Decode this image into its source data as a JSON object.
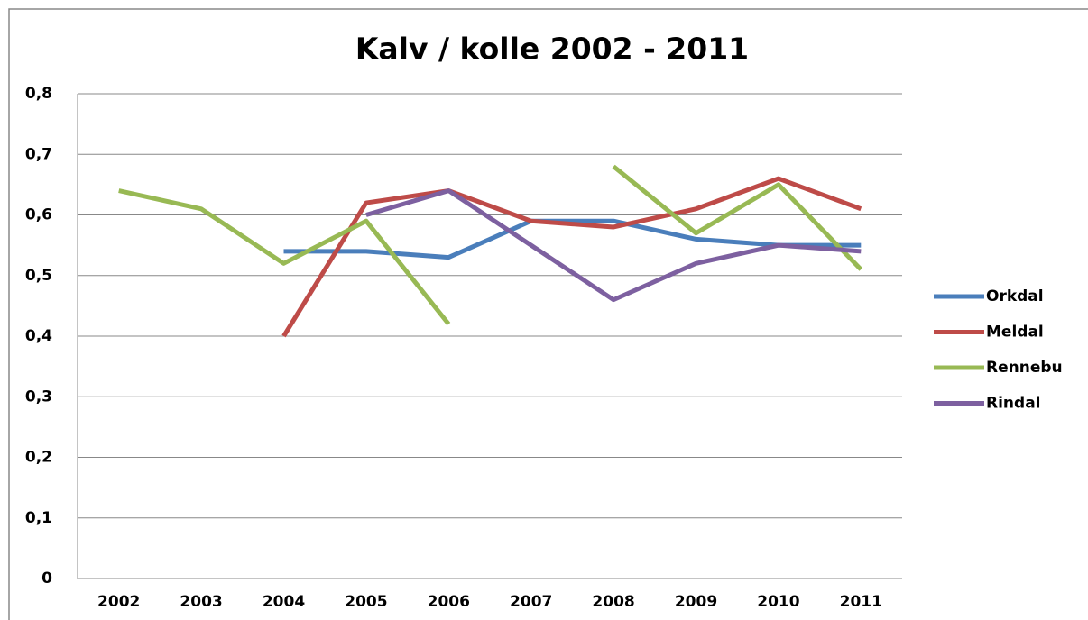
{
  "chart_data": {
    "type": "line",
    "title": "Kalv / kolle 2002 - 2011",
    "categories": [
      "2002",
      "2003",
      "2004",
      "2005",
      "2006",
      "2007",
      "2008",
      "2009",
      "2010",
      "2011"
    ],
    "series": [
      {
        "name": "Orkdal",
        "color": "#4a7ebb",
        "values": [
          null,
          null,
          0.54,
          0.54,
          0.53,
          0.59,
          0.59,
          0.56,
          0.55,
          0.55
        ]
      },
      {
        "name": "Meldal",
        "color": "#be4b48",
        "values": [
          null,
          null,
          0.4,
          0.62,
          0.64,
          0.59,
          0.58,
          0.61,
          0.66,
          0.61
        ]
      },
      {
        "name": "Rennebu",
        "color": "#98b954",
        "values": [
          0.64,
          0.61,
          0.52,
          0.59,
          0.42,
          null,
          0.68,
          0.57,
          0.65,
          0.51
        ]
      },
      {
        "name": "Rindal",
        "color": "#7d60a0",
        "values": [
          null,
          null,
          null,
          0.6,
          0.64,
          0.55,
          0.46,
          0.52,
          0.55,
          0.54
        ]
      }
    ],
    "ylim": [
      0,
      0.8
    ],
    "yticks": [
      0,
      {
        "value": 0.1,
        "label": "0,1"
      },
      {
        "value": 0.2,
        "label": "0,2"
      },
      {
        "value": 0.3,
        "label": "0,3"
      },
      {
        "value": 0.4,
        "label": "0,4"
      },
      {
        "value": 0.5,
        "label": "0,5"
      },
      {
        "value": 0.6,
        "label": "0,6"
      },
      {
        "value": 0.7,
        "label": "0,7"
      },
      {
        "value": 0.8,
        "label": "0,8"
      }
    ],
    "grid": true,
    "legend": "right"
  }
}
